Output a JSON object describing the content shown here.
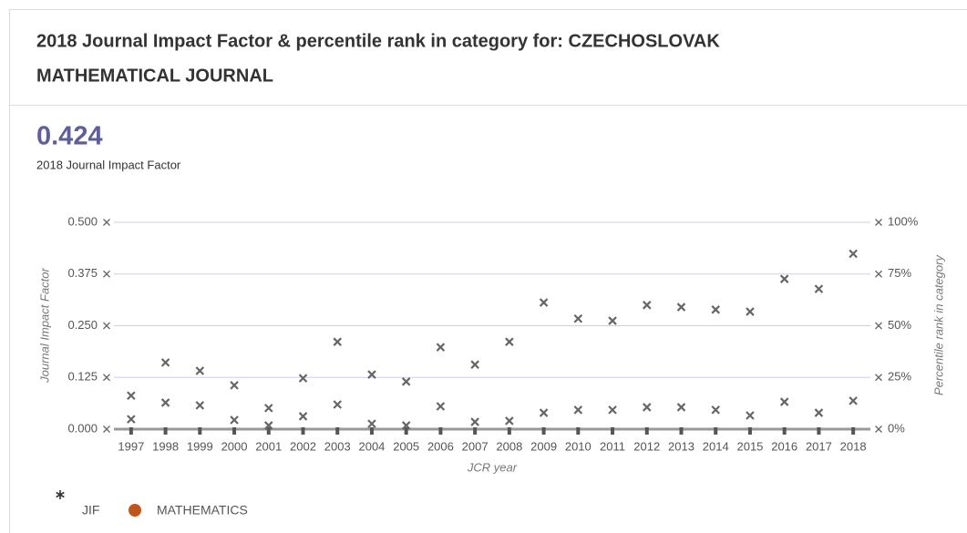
{
  "header": {
    "title_lines": [
      "2018 Journal Impact Factor & percentile rank in category for: CZECHOSLOVAK",
      "MATHEMATICAL JOURNAL"
    ],
    "impact_factor": 0.424,
    "impact_factor_label": "2018 Journal Impact Factor"
  },
  "chart_data": {
    "type": "scatter",
    "categories": [
      "1997",
      "1998",
      "1999",
      "2000",
      "2001",
      "2002",
      "2003",
      "2004",
      "2005",
      "2006",
      "2007",
      "2008",
      "2009",
      "2010",
      "2011",
      "2012",
      "2013",
      "2014",
      "2015",
      "2016",
      "2017",
      "2018"
    ],
    "series": [
      {
        "name": "JIF",
        "color": "#666666",
        "values": [
          0.081,
          0.161,
          0.141,
          0.106,
          0.051,
          0.123,
          0.211,
          0.132,
          0.115,
          0.198,
          0.156,
          0.211,
          0.306,
          0.267,
          0.262,
          0.3,
          0.295,
          0.289,
          0.284,
          0.363,
          0.339,
          0.424
        ]
      },
      {
        "name": "MATHEMATICS",
        "color": "#c0561c",
        "axis": "y2",
        "values": [
          4.8,
          12.8,
          11.5,
          4.4,
          1.8,
          6.2,
          11.9,
          2.6,
          1.8,
          11.0,
          3.5,
          4.0,
          7.9,
          9.3,
          9.3,
          10.6,
          10.6,
          9.3,
          6.6,
          13.2,
          7.9,
          13.7
        ]
      }
    ],
    "marker_color": "#666666",
    "ylim": [
      0,
      0.5
    ],
    "yticks": [
      {
        "value": 0,
        "label": "0.000"
      },
      0.125,
      {
        "value": 0.25,
        "label": "0.250"
      },
      0.375,
      {
        "value": 0.5,
        "label": "0.500"
      }
    ],
    "y2lim": [
      0,
      100
    ],
    "y2ticks": [
      {
        "value": 0,
        "label": "0%"
      },
      {
        "value": 25,
        "label": "25%"
      },
      {
        "value": 50,
        "label": "50%"
      },
      {
        "value": 75,
        "label": "75%"
      },
      {
        "value": 100,
        "label": "100%"
      }
    ],
    "ylabel": "Journal Impact Factor",
    "y2label": "Percentile rank in category",
    "xlabel": "JCR year",
    "grid": true
  }
}
